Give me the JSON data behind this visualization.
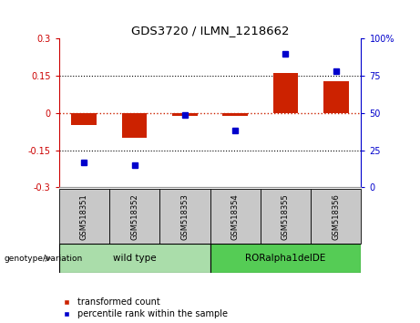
{
  "title": "GDS3720 / ILMN_1218662",
  "samples": [
    "GSM518351",
    "GSM518352",
    "GSM518353",
    "GSM518354",
    "GSM518355",
    "GSM518356"
  ],
  "red_values": [
    -0.05,
    -0.1,
    -0.012,
    -0.012,
    0.16,
    0.128
  ],
  "blue_values": [
    17,
    15,
    49,
    38,
    90,
    78
  ],
  "ylim_left": [
    -0.3,
    0.3
  ],
  "ylim_right": [
    0,
    100
  ],
  "yticks_left": [
    -0.3,
    -0.15,
    0,
    0.15,
    0.3
  ],
  "yticks_right": [
    0,
    25,
    50,
    75,
    100
  ],
  "left_axis_color": "#cc0000",
  "right_axis_color": "#0000cc",
  "bar_color": "#cc2200",
  "dot_color": "#0000cc",
  "hline_color": "#cc2200",
  "legend_items": [
    "transformed count",
    "percentile rank within the sample"
  ],
  "genotype_label": "genotype/variation",
  "bg_color": "#ffffff",
  "sample_box_color": "#c8c8c8",
  "group_wt_color": "#aaddaa",
  "group_ror_color": "#55cc55",
  "wt_label": "wild type",
  "ror_label": "RORalpha1delDE",
  "wt_range": [
    0,
    3
  ],
  "ror_range": [
    3,
    6
  ]
}
